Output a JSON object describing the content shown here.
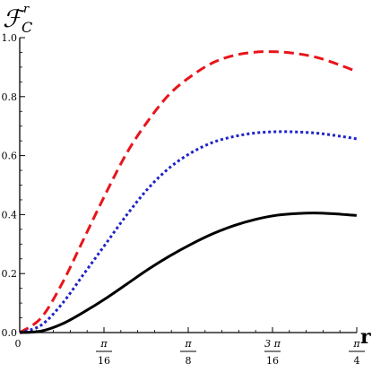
{
  "chart_data": {
    "type": "line",
    "ylabel": {
      "main": "ℱ",
      "sup": "r",
      "sub": "C"
    },
    "xlabel": "r",
    "xlim": [
      0,
      0.7853981634
    ],
    "ylim": [
      0,
      1.0
    ],
    "xticks": [
      {
        "value": 0,
        "num": "0",
        "den": ""
      },
      {
        "value": 0.19634954,
        "num": "π",
        "den": "16"
      },
      {
        "value": 0.39269908,
        "num": "π",
        "den": "8"
      },
      {
        "value": 0.58904862,
        "num": "3 π",
        "den": "16"
      },
      {
        "value": 0.78539816,
        "num": "π",
        "den": "4"
      }
    ],
    "yticks": [
      {
        "value": 0.0,
        "label": "0.0"
      },
      {
        "value": 0.2,
        "label": "0.2"
      },
      {
        "value": 0.4,
        "label": "0.4"
      },
      {
        "value": 0.6,
        "label": "0.6"
      },
      {
        "value": 0.8,
        "label": "0.8"
      },
      {
        "value": 1.0,
        "label": "1.0"
      }
    ],
    "series": [
      {
        "color": "#e8141b",
        "style": "dashed",
        "x": [
          0,
          0.05,
          0.1,
          0.15,
          0.2,
          0.25,
          0.3,
          0.35,
          0.4,
          0.45,
          0.5,
          0.55,
          0.6,
          0.65,
          0.7,
          0.75,
          0.785
        ],
        "y": [
          0.0,
          0.05,
          0.17,
          0.32,
          0.47,
          0.61,
          0.72,
          0.81,
          0.87,
          0.915,
          0.94,
          0.951,
          0.952,
          0.945,
          0.93,
          0.905,
          0.885
        ]
      },
      {
        "color": "#1f22c8",
        "style": "dotted",
        "x": [
          0,
          0.05,
          0.1,
          0.15,
          0.2,
          0.25,
          0.3,
          0.35,
          0.4,
          0.45,
          0.5,
          0.55,
          0.6,
          0.65,
          0.7,
          0.75,
          0.785
        ],
        "y": [
          0.0,
          0.025,
          0.1,
          0.2,
          0.3,
          0.4,
          0.49,
          0.56,
          0.61,
          0.645,
          0.665,
          0.677,
          0.681,
          0.68,
          0.675,
          0.665,
          0.657
        ]
      },
      {
        "color": "#000000",
        "style": "solid",
        "x": [
          0,
          0.05,
          0.1,
          0.15,
          0.2,
          0.25,
          0.3,
          0.35,
          0.4,
          0.45,
          0.5,
          0.55,
          0.6,
          0.65,
          0.7,
          0.75,
          0.785
        ],
        "y": [
          0.0,
          0.005,
          0.03,
          0.07,
          0.115,
          0.165,
          0.215,
          0.26,
          0.3,
          0.335,
          0.363,
          0.384,
          0.398,
          0.404,
          0.405,
          0.401,
          0.397
        ]
      }
    ]
  }
}
